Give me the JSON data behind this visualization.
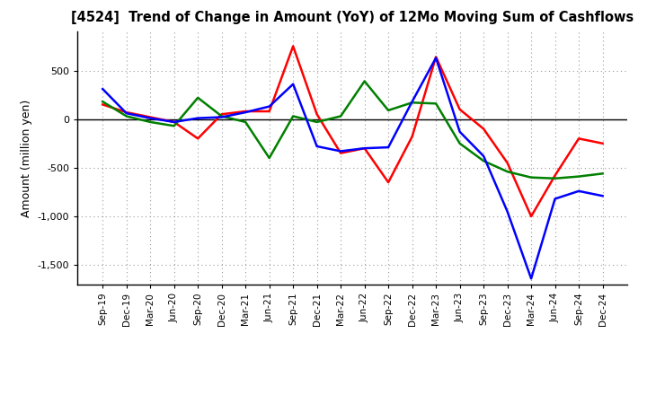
{
  "title": "[4524]  Trend of Change in Amount (YoY) of 12Mo Moving Sum of Cashflows",
  "ylabel": "Amount (million yen)",
  "labels": [
    "Sep-19",
    "Dec-19",
    "Mar-20",
    "Jun-20",
    "Sep-20",
    "Dec-20",
    "Mar-21",
    "Jun-21",
    "Sep-21",
    "Dec-21",
    "Mar-22",
    "Jun-22",
    "Sep-22",
    "Dec-22",
    "Mar-23",
    "Jun-23",
    "Sep-23",
    "Dec-23",
    "Mar-24",
    "Jun-24",
    "Sep-24",
    "Dec-24"
  ],
  "operating": [
    150,
    70,
    20,
    -30,
    -200,
    50,
    80,
    80,
    750,
    50,
    -350,
    -300,
    -650,
    -180,
    640,
    100,
    -100,
    -450,
    -1000,
    -580,
    -200,
    -250
  ],
  "investing": [
    180,
    30,
    -30,
    -70,
    220,
    30,
    -30,
    -400,
    30,
    -30,
    30,
    390,
    90,
    170,
    160,
    -250,
    -430,
    -540,
    -600,
    -610,
    -590,
    -560
  ],
  "free": [
    310,
    60,
    10,
    -30,
    10,
    20,
    70,
    130,
    360,
    -280,
    -330,
    -300,
    -290,
    180,
    630,
    -130,
    -380,
    -950,
    -1640,
    -820,
    -740,
    -790
  ],
  "colors": {
    "operating": "#ff0000",
    "investing": "#008000",
    "free": "#0000ff"
  },
  "ylim": [
    -1700,
    900
  ],
  "yticks": [
    -1500,
    -1000,
    -500,
    0,
    500
  ],
  "background": "#ffffff",
  "grid_color": "#999999",
  "linewidth": 1.8
}
